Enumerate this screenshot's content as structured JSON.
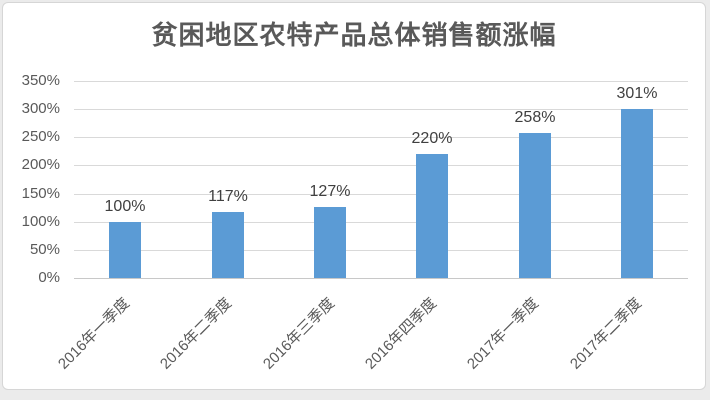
{
  "page": {
    "background_color": "#ebebeb",
    "card_background": "#ffffff",
    "card_border_color": "#d6d6d6"
  },
  "chart_data": {
    "type": "bar",
    "title": "贫困地区农特产品总体销售额涨幅",
    "categories": [
      "2016年一季度",
      "2016年二季度",
      "2016年三季度",
      "2016年四季度",
      "2017年一季度",
      "2017年二季度"
    ],
    "values": [
      100,
      117,
      127,
      220,
      258,
      301
    ],
    "data_labels": [
      "100%",
      "117%",
      "127%",
      "220%",
      "258%",
      "301%"
    ],
    "xlabel": "",
    "ylabel": "",
    "ylim": [
      0,
      350
    ],
    "y_tick_step": 50,
    "y_ticks": [
      "0%",
      "50%",
      "100%",
      "150%",
      "200%",
      "250%",
      "300%",
      "350%"
    ],
    "grid": true,
    "legend": "none",
    "colors": {
      "bar": "#5B9BD5",
      "gridline": "#d9d9d9",
      "axis_line": "#c8c8c8",
      "title_text": "#595959",
      "tick_text": "#595959",
      "data_label_text": "#404040"
    }
  }
}
